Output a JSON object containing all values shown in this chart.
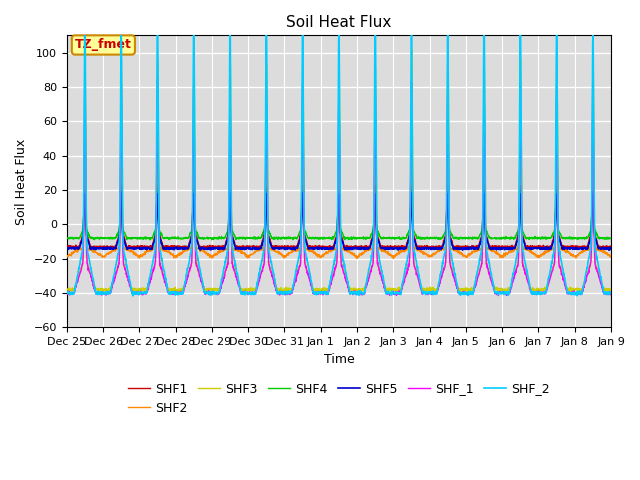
{
  "title": "Soil Heat Flux",
  "xlabel": "Time",
  "ylabel": "Soil Heat Flux",
  "ylim": [
    -60,
    110
  ],
  "yticks": [
    -60,
    -40,
    -20,
    0,
    20,
    40,
    60,
    80,
    100
  ],
  "bg_color": "#dcdcdc",
  "fig_bg": "#ffffff",
  "annotation_text": "TZ_fmet",
  "annotation_bg": "#ffff99",
  "annotation_border": "#cc8800",
  "annotation_text_color": "#cc0000",
  "series": {
    "SHF1": {
      "color": "#cc0000",
      "lw": 1.0
    },
    "SHF2": {
      "color": "#ff8800",
      "lw": 1.0
    },
    "SHF3": {
      "color": "#cccc00",
      "lw": 1.0
    },
    "SHF4": {
      "color": "#00cc00",
      "lw": 1.0
    },
    "SHF5": {
      "color": "#0000cc",
      "lw": 1.2
    },
    "SHF_1": {
      "color": "#ff00ff",
      "lw": 1.0
    },
    "SHF_2": {
      "color": "#00ccff",
      "lw": 1.2
    }
  },
  "legend_fontsize": 9,
  "tick_fontsize": 8,
  "title_fontsize": 11,
  "n_days": 15,
  "pts_per_day": 144,
  "xtick_labels": [
    "Dec 25",
    "Dec 26",
    "Dec 27",
    "Dec 28",
    "Dec 29",
    "Dec 30",
    "Dec 31",
    "Jan 1",
    "Jan 2",
    "Jan 3",
    "Jan 4",
    "Jan 5",
    "Jan 6",
    "Jan 7",
    "Jan 8",
    "Jan 9"
  ]
}
